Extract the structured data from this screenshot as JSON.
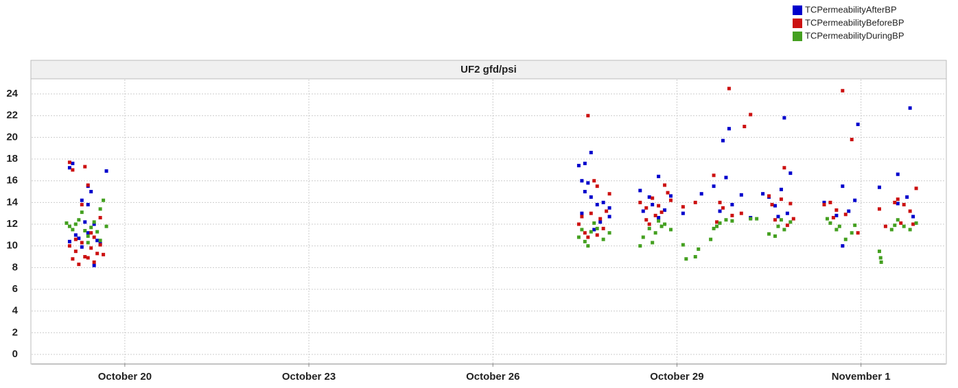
{
  "chart_data": {
    "type": "scatter",
    "title": "UF2 gfd/psi",
    "xlim": [
      18.48,
      33.38
    ],
    "xticks": [
      {
        "value": 20,
        "label": "October 20"
      },
      {
        "value": 23,
        "label": "October 23"
      },
      {
        "value": 26,
        "label": "October 26"
      },
      {
        "value": 29,
        "label": "October 29"
      },
      {
        "value": 32,
        "label": "November 1"
      }
    ],
    "ylim": [
      -0.82,
      25.33
    ],
    "yticks": [
      0,
      2,
      4,
      6,
      8,
      10,
      12,
      14,
      16,
      18,
      20,
      22,
      24
    ],
    "grid": true,
    "legend": "top-right",
    "series": [
      {
        "name": "TCPermeabilityAfterBP",
        "color": "#0000cc",
        "x": [
          19.1,
          19.15,
          19.4,
          19.45,
          19.7,
          19.3,
          19.4,
          19.35,
          19.5,
          19.2,
          19.25,
          19.1,
          19.55,
          19.6,
          19.5,
          19.3,
          19.4,
          27.4,
          27.5,
          27.6,
          27.45,
          27.55,
          27.5,
          27.6,
          27.7,
          27.8,
          27.9,
          27.45,
          27.75,
          27.9,
          27.65,
          28.4,
          28.7,
          28.55,
          28.9,
          28.6,
          28.45,
          28.8,
          28.7,
          29.1,
          29.4,
          29.6,
          29.8,
          29.75,
          29.85,
          30.05,
          29.9,
          29.7,
          30.2,
          30.4,
          30.5,
          30.7,
          30.75,
          30.85,
          30.6,
          30.8,
          30.65,
          31.4,
          31.6,
          31.7,
          31.9,
          31.95,
          31.7,
          31.8,
          32.3,
          32.6,
          32.8,
          32.75,
          32.6,
          32.85
        ],
        "values": [
          17.2,
          17.6,
          15.5,
          15,
          16.9,
          14.2,
          13.8,
          12.2,
          12,
          11,
          10.7,
          10.4,
          10.5,
          10.2,
          8.2,
          9.9,
          11.2,
          17.4,
          17.6,
          18.6,
          16,
          15.8,
          15,
          14.5,
          13.8,
          14,
          13.5,
          13,
          12.2,
          12.7,
          11.5,
          15.1,
          16.4,
          14.5,
          14.6,
          13.8,
          13.2,
          13.3,
          12.6,
          13,
          14.8,
          15.5,
          16.3,
          19.7,
          20.8,
          14.7,
          13.8,
          13.2,
          12.6,
          14.8,
          14.5,
          15.2,
          21.8,
          16.7,
          13.7,
          13,
          12.7,
          14,
          12.8,
          15.5,
          14.2,
          21.2,
          10,
          13.2,
          15.4,
          16.6,
          22.7,
          14.5,
          13.9,
          12.7
        ]
      },
      {
        "name": "TCPermeabilityBeforeBP",
        "color": "#cc1111",
        "x": [
          19.1,
          19.15,
          19.35,
          19.4,
          19.6,
          19.3,
          19.1,
          19.2,
          19.15,
          19.25,
          19.35,
          19.45,
          19.5,
          19.55,
          19.6,
          19.65,
          19.3,
          19.4,
          19.2,
          19.5,
          19.45,
          27.55,
          27.4,
          27.5,
          27.6,
          27.65,
          27.7,
          27.75,
          27.8,
          27.9,
          27.85,
          27.45,
          27.55,
          27.7,
          28.4,
          28.5,
          28.6,
          28.65,
          28.7,
          28.8,
          28.9,
          28.55,
          28.75,
          28.85,
          28.5,
          29.1,
          29.3,
          29.6,
          29.7,
          29.75,
          29.9,
          29.85,
          30.1,
          30.2,
          30.05,
          29.65,
          30.5,
          30.55,
          30.7,
          30.75,
          30.85,
          30.9,
          30.6,
          30.8,
          31.4,
          31.5,
          31.6,
          31.7,
          31.85,
          31.75,
          31.95,
          31.55,
          32.3,
          32.4,
          32.55,
          32.6,
          32.7,
          32.8,
          32.9,
          32.65,
          32.85
        ],
        "values": [
          17.7,
          17,
          17.3,
          15.6,
          12.6,
          13.8,
          10,
          9.5,
          8.8,
          8.3,
          9,
          9.8,
          8.5,
          9.3,
          10.1,
          9.2,
          10.3,
          8.9,
          10.6,
          10.8,
          11.2,
          22,
          12,
          11.2,
          13,
          16,
          15.5,
          12.5,
          11.6,
          14.8,
          13.2,
          12.7,
          10.8,
          11,
          14,
          13.5,
          14.4,
          12.8,
          13.7,
          15.6,
          14.2,
          12,
          13.1,
          14.9,
          12.4,
          13.6,
          14,
          16.5,
          14,
          13.5,
          12.8,
          24.5,
          21,
          22.1,
          13,
          12.2,
          14.6,
          13.8,
          14.3,
          17.2,
          13.9,
          12.5,
          12.4,
          11.9,
          13.8,
          14,
          13.3,
          24.3,
          19.8,
          12.9,
          11.2,
          12.6,
          13.4,
          11.8,
          14,
          14.3,
          13.8,
          13.2,
          15.3,
          12.1,
          12
        ]
      },
      {
        "name": "TCPermeabilityDuringBP",
        "color": "#44a020",
        "x": [
          19.05,
          19.1,
          19.15,
          19.2,
          19.25,
          19.3,
          19.35,
          19.4,
          19.45,
          19.5,
          19.55,
          19.6,
          19.65,
          19.7,
          19.6,
          19.4,
          27.4,
          27.5,
          27.55,
          27.6,
          27.7,
          27.8,
          27.9,
          27.65,
          27.45,
          28.4,
          28.45,
          28.6,
          28.65,
          28.7,
          28.8,
          28.9,
          28.75,
          28.55,
          29.1,
          29.15,
          29.3,
          29.35,
          29.55,
          29.65,
          29.7,
          29.8,
          29.9,
          30.2,
          30.3,
          29.6,
          30.5,
          30.6,
          30.65,
          30.75,
          30.85,
          30.7,
          31.5,
          31.6,
          31.65,
          31.75,
          31.85,
          31.9,
          31.45,
          32.3,
          32.32,
          32.33,
          32.5,
          32.6,
          32.7,
          32.8,
          32.9,
          32.55
        ],
        "values": [
          12.1,
          11.8,
          11.5,
          12,
          12.4,
          13.1,
          11.4,
          10.9,
          11.7,
          12.2,
          11.3,
          13.4,
          14.2,
          11.8,
          10.5,
          10.3,
          10.8,
          10.4,
          10,
          11.3,
          11.6,
          10.6,
          11.2,
          12.1,
          11.5,
          10,
          10.8,
          10.3,
          11.2,
          12.3,
          12,
          11.5,
          11.8,
          11.6,
          10.1,
          8.8,
          9,
          9.7,
          10.6,
          11.8,
          12.1,
          12.4,
          12.3,
          12.5,
          12.5,
          11.6,
          11.1,
          10.9,
          11.8,
          11.5,
          12.2,
          12.4,
          12.1,
          11.5,
          11.8,
          10.6,
          11.2,
          11.9,
          12.5,
          9.5,
          8.9,
          8.5,
          11.5,
          12.4,
          11.8,
          11.5,
          12.1,
          11.9
        ]
      }
    ]
  }
}
